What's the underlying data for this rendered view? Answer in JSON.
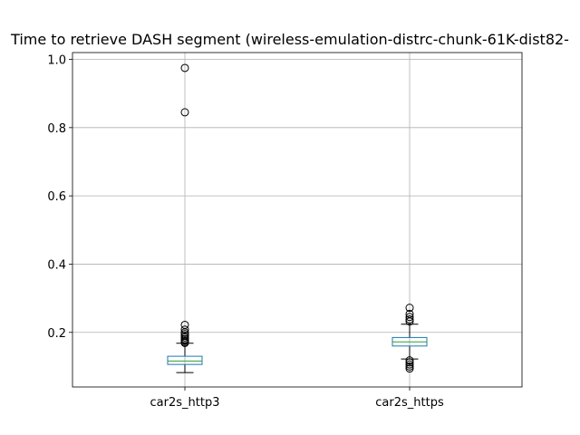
{
  "chart_data": {
    "type": "box",
    "title": "Time to retrieve DASH segment (wireless-emulation-distrc-chunk-61K-dist82-",
    "xlabel": "",
    "ylabel": "",
    "categories": [
      "car2s_http3",
      "car2s_https"
    ],
    "ylim": [
      0.04,
      1.02
    ],
    "yticks": [
      0.2,
      0.4,
      0.6,
      0.8,
      1.0
    ],
    "ytick_labels": [
      "0.2",
      "0.4",
      "0.6",
      "0.8",
      "1.0"
    ],
    "grid": true,
    "colors": {
      "box": "#1f77b4",
      "median": "#2ca02c",
      "whisker": "#000000",
      "grid": "#b0b0b0"
    },
    "boxes": [
      {
        "name": "car2s_http3",
        "whislo": 0.082,
        "q1": 0.106,
        "median": 0.116,
        "q3": 0.13,
        "whishi": 0.168,
        "fliers": [
          0.975,
          0.845,
          0.222,
          0.208,
          0.2,
          0.195,
          0.19,
          0.185,
          0.18,
          0.176,
          0.172,
          0.169
        ]
      },
      {
        "name": "car2s_https",
        "whislo": 0.122,
        "q1": 0.16,
        "median": 0.172,
        "q3": 0.185,
        "whishi": 0.224,
        "fliers": [
          0.272,
          0.254,
          0.245,
          0.238,
          0.232,
          0.118,
          0.112,
          0.106,
          0.1,
          0.094
        ]
      }
    ]
  }
}
